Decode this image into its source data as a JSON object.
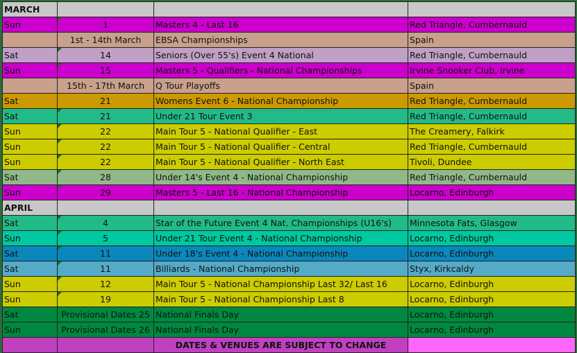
{
  "colors": {
    "magenta": "#cc00cc",
    "tan": "#c8a08c",
    "lavender": "#c0a0c4",
    "orange": "#cc9900",
    "green_teal": "#22bb88",
    "yellow": "#cccc00",
    "sage": "#90b888",
    "aqua": "#00c8a0",
    "blue": "#0a88bb",
    "light_blue": "#55aac8",
    "dark_green": "#008840",
    "footer_purple": "#c040c0",
    "footer_pink": "#ff66ff",
    "month_gray": "#c8c8c8"
  },
  "sections": [
    {
      "month": "MARCH",
      "rows": [
        {
          "day": "Sun",
          "date": "1",
          "event": "Masters 4 - Last 16",
          "venue": "Red Triangle, Cumbernauld",
          "color": "magenta",
          "mark": true
        },
        {
          "day": "",
          "date": "1st - 14th March",
          "event": "EBSA Championships",
          "venue": "Spain",
          "color": "tan",
          "mark": false
        },
        {
          "day": "Sat",
          "date": "14",
          "event": "Seniors (Over 55's) Event 4 National",
          "venue": "Red Triangle, Cumbernauld",
          "color": "lavender",
          "mark": true
        },
        {
          "day": "Sun",
          "date": "15",
          "event": "Masters 5 - Qualifiers - National Championships",
          "venue": "Irvine Snooker Club, Irvine",
          "color": "magenta",
          "mark": true
        },
        {
          "day": "",
          "date": "15th - 17th March",
          "event": "Q Tour Playoffs",
          "venue": "Spain",
          "color": "tan",
          "mark": false
        },
        {
          "day": "Sat",
          "date": "21",
          "event": "Womens Event 6 - National Championship",
          "venue": "Red Triangle, Cumbernauld",
          "color": "orange",
          "mark": false
        },
        {
          "day": "Sat",
          "date": "21",
          "event": "Under 21 Tour Event 3",
          "venue": "Red Triangle, Cumbernauld",
          "color": "green_teal",
          "mark": true
        },
        {
          "day": "Sun",
          "date": "22",
          "event": "Main Tour 5 - National Qualifier - East",
          "venue": "The Creamery, Falkirk",
          "color": "yellow",
          "mark": true
        },
        {
          "day": "Sun",
          "date": "22",
          "event": "Main Tour 5 - National Qualifier - Central",
          "venue": "Red Triangle, Cumbernauld",
          "color": "yellow",
          "mark": true
        },
        {
          "day": "Sun",
          "date": "22",
          "event": "Main Tour 5 - National Qualifier - North East",
          "venue": "Tivoli, Dundee",
          "color": "yellow",
          "mark": true
        },
        {
          "day": "Sat",
          "date": "28",
          "event": "Under 14's Event 4 - National Championship",
          "venue": "Red Triangle, Cumbernauld",
          "color": "sage",
          "mark": true
        },
        {
          "day": "Sun",
          "date": "29",
          "event": "Masters 5 - Last 16 - National Championship",
          "venue": "Locarno, Edinburgh",
          "color": "magenta",
          "mark": true
        }
      ]
    },
    {
      "month": "APRIL",
      "rows": [
        {
          "day": "Sat",
          "date": "4",
          "event": "Star of the Future Event 4 Nat. Championships (U16's)",
          "venue": "Minnesota Fats, Glasgow",
          "color": "green_teal",
          "mark": true
        },
        {
          "day": "Sun",
          "date": "5",
          "event": "Under 21 Tour Event 4 - National Championship",
          "venue": "Locarno, Edinburgh",
          "color": "aqua",
          "mark": true
        },
        {
          "day": "Sat",
          "date": "11",
          "event": "Under 18's Event 4 - National Championship",
          "venue": "Locarno, Edinburgh",
          "color": "blue",
          "mark": true
        },
        {
          "day": "Sat",
          "date": "11",
          "event": "Billiards - National Championship",
          "venue": "Styx, Kirkcaldy",
          "color": "light_blue",
          "mark": true
        },
        {
          "day": "Sun",
          "date": "12",
          "event": "Main Tour 5 -  National Championship Last 32/ Last 16",
          "venue": "Locarno, Edinburgh",
          "color": "yellow",
          "mark": true
        },
        {
          "day": "Sun",
          "date": "19",
          "event": "Main Tour 5 - National Championship Last 8",
          "venue": "Locarno, Edinburgh",
          "color": "yellow",
          "mark": true
        },
        {
          "day": "Sat",
          "date": "Provisional Dates 25",
          "event": "National Finals Day",
          "venue": "Locarno, Edinburgh",
          "color": "dark_green",
          "mark": false
        },
        {
          "day": "Sun",
          "date": "Provisional Dates 26",
          "event": "National Finals Day",
          "venue": "Locarno, Edinburgh",
          "color": "dark_green",
          "mark": false
        }
      ]
    }
  ],
  "footer": {
    "notice": "DATES & VENUES ARE SUBJECT TO CHANGE"
  }
}
